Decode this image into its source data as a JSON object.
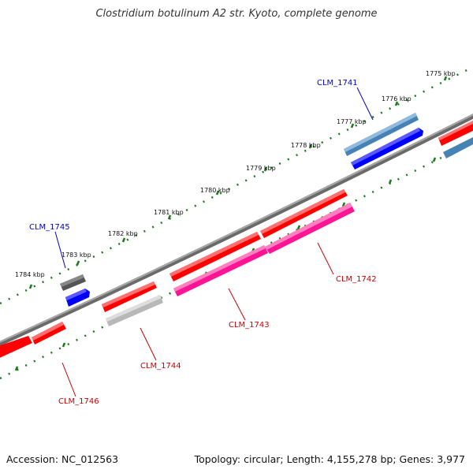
{
  "title": "Clostridium botulinum A2 str. Kyoto, complete genome",
  "accession": "Accession: NC_012563",
  "topology": "Topology: circular; Length: 4,155,278 bp; Genes: 3,977",
  "colors": {
    "forward_cds": "#ff0000",
    "reverse_cds": "#ff1493",
    "reverse_blue": "#0000ff",
    "steel": "#4682b4",
    "grey_dark": "#555555",
    "grey_light": "#bbbbbb",
    "backbone": "#808080",
    "tick_green": "#1a7a1a",
    "label_blue": "#0000cc",
    "label_red": "#cc0000"
  },
  "ticks": [
    "1775 kbp",
    "1776 kbp",
    "1777 kbp",
    "1778 kbp",
    "1779 kbp",
    "1780 kbp",
    "1781 kbp",
    "1782 kbp",
    "1783 kbp",
    "1784 kbp"
  ],
  "gene_labels": {
    "clm1741": "CLM_1741",
    "clm1742": "CLM_1742",
    "clm1743": "CLM_1743",
    "clm1744": "CLM_1744",
    "clm1745": "CLM_1745",
    "clm1746": "CLM_1746"
  }
}
